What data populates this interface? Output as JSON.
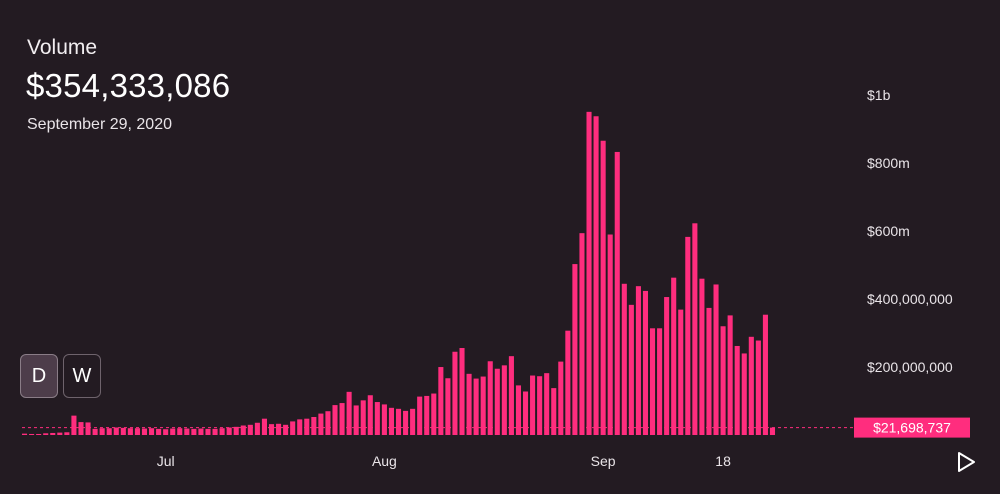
{
  "header": {
    "title": "Volume",
    "value": "$354,333,086",
    "date": "September 29, 2020"
  },
  "controls": {
    "day_label": "D",
    "week_label": "W",
    "play_icon": "play-icon"
  },
  "colors": {
    "background": "#231b22",
    "bar": "#ff2d7e",
    "current_label_bg": "#ff2d7e",
    "axis_text": "#e9e4e8"
  },
  "chart_data": {
    "type": "bar",
    "ylim": [
      0,
      1030000000
    ],
    "y_ticks": [
      {
        "value": 200000000,
        "label": "$200,000,000"
      },
      {
        "value": 400000000,
        "label": "$400,000,000"
      },
      {
        "value": 600000000,
        "label": "$600m"
      },
      {
        "value": 800000000,
        "label": "$800m"
      },
      {
        "value": 1000000000,
        "label": "$1b"
      }
    ],
    "x_ticks": [
      {
        "index": 20,
        "label": "Jul"
      },
      {
        "index": 51,
        "label": "Aug"
      },
      {
        "index": 82,
        "label": "Sep"
      },
      {
        "index": 99,
        "label": "18"
      }
    ],
    "values": [
      4000000,
      3000000,
      3000000,
      5000000,
      6000000,
      7000000,
      8000000,
      57000000,
      38000000,
      37000000,
      18000000,
      20000000,
      20000000,
      22000000,
      21000000,
      20000000,
      20000000,
      19000000,
      20000000,
      18000000,
      17000000,
      19000000,
      20000000,
      19000000,
      18000000,
      19000000,
      18000000,
      18000000,
      20000000,
      22000000,
      24000000,
      28000000,
      30000000,
      36000000,
      48000000,
      32000000,
      33000000,
      30000000,
      40000000,
      46000000,
      48000000,
      53000000,
      63000000,
      70000000,
      88000000,
      94000000,
      127000000,
      87000000,
      102000000,
      117000000,
      97000000,
      90000000,
      80000000,
      77000000,
      71000000,
      77000000,
      113000000,
      115000000,
      122000000,
      200000000,
      167000000,
      245000000,
      256000000,
      180000000,
      166000000,
      172000000,
      217000000,
      195000000,
      205000000,
      232000000,
      146000000,
      128000000,
      175000000,
      173000000,
      182000000,
      138000000,
      216000000,
      307000000,
      503000000,
      594000000,
      951000000,
      938000000,
      866000000,
      590000000,
      833000000,
      445000000,
      383000000,
      438000000,
      424000000,
      314000000,
      314000000,
      406000000,
      463000000,
      369000000,
      583000000,
      623000000,
      460000000,
      374000000,
      443000000,
      320000000,
      352000000,
      262000000,
      240000000,
      289000000,
      278000000,
      354000000,
      21698737
    ],
    "current": {
      "value": 21698737,
      "label": "$21,698,737"
    }
  }
}
